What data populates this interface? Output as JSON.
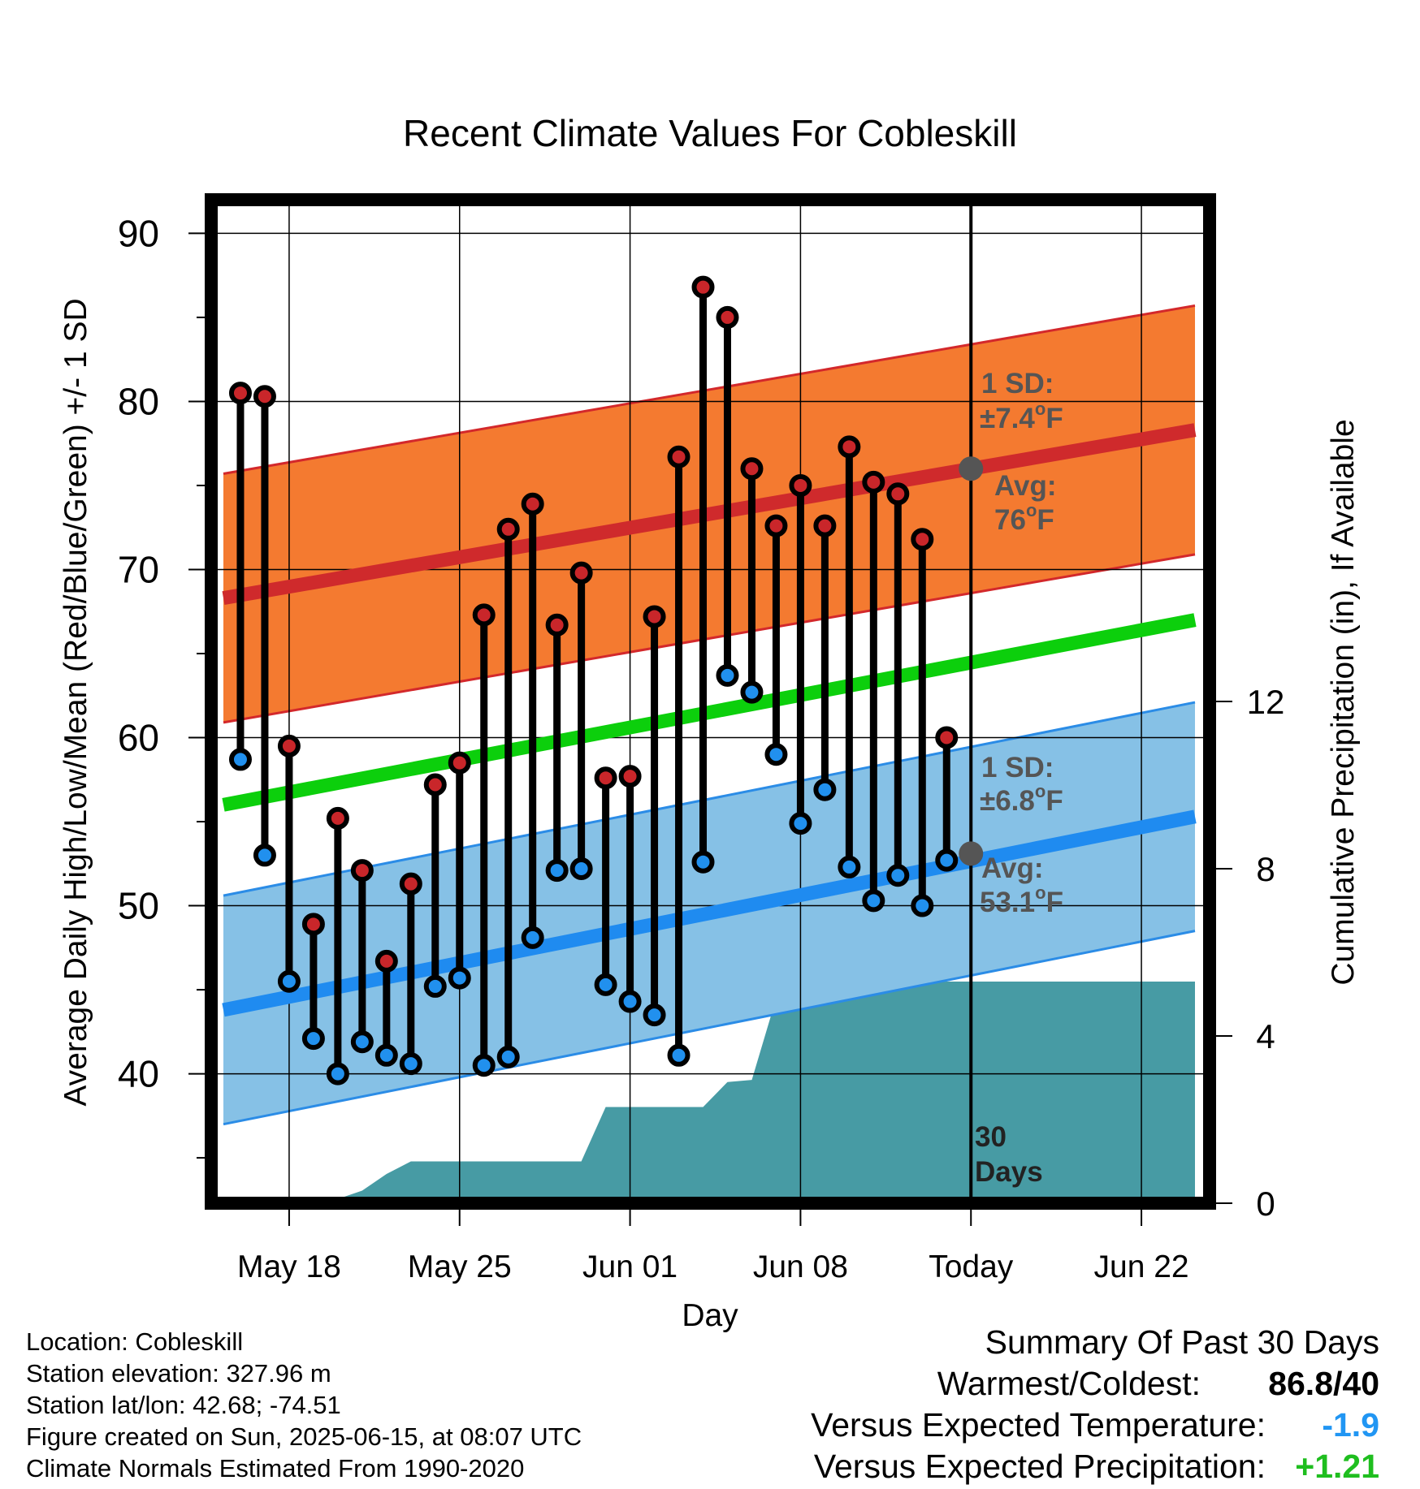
{
  "colors": {
    "high_band": "#f47a30",
    "high_edge": "#d3282b",
    "high_avg": "#cf2a2c",
    "low_band": "#86c1e6",
    "low_edge": "#2b8ce6",
    "low_avg": "#1f8bf0",
    "mean_line": "#0ccf0c",
    "precip": "#479ba4",
    "high_marker": "#c9262a",
    "low_marker": "#2190ee",
    "annotation": "#555555",
    "temp_departure": "#2196f3",
    "precip_departure": "#1fbe1f"
  },
  "chart_data": {
    "type": "line",
    "title": "Recent Climate Values For Cobleskill",
    "xlabel": "Day",
    "ylabel_left": "Average Daily High/Low/Mean (Red/Blue/Green) +/- 1 SD",
    "ylabel_right": "Cumulative Precipitation (in), If Available",
    "x_ticks": [
      {
        "day": 0,
        "label": "May 18"
      },
      {
        "day": 7,
        "label": "May 25"
      },
      {
        "day": 14,
        "label": "Jun 01"
      },
      {
        "day": 21,
        "label": "Jun 08"
      },
      {
        "day": 28,
        "label": "Today"
      },
      {
        "day": 35,
        "label": "Jun 22"
      }
    ],
    "xlim": [
      -3.2,
      37.8
    ],
    "ylim_left": [
      32.3,
      92
    ],
    "ylim_right": [
      0,
      24
    ],
    "y_ticks_left": [
      40,
      50,
      60,
      70,
      80,
      90
    ],
    "y_ticks_right": [
      0,
      4,
      8,
      12
    ],
    "grid": true,
    "days": [
      -2,
      -1,
      0,
      1,
      2,
      3,
      4,
      5,
      6,
      7,
      8,
      9,
      10,
      11,
      12,
      13,
      14,
      15,
      16,
      17,
      18,
      19,
      20,
      21,
      22,
      23,
      24,
      25,
      26,
      27
    ],
    "highs": [
      80.5,
      80.3,
      59.5,
      48.9,
      55.2,
      52.1,
      46.7,
      51.3,
      57.2,
      58.5,
      67.3,
      72.4,
      73.9,
      66.7,
      69.8,
      57.6,
      57.7,
      67.2,
      76.7,
      86.8,
      85.0,
      76.0,
      72.6,
      75.0,
      72.6,
      77.3,
      75.2,
      74.5,
      71.8,
      60.0
    ],
    "lows": [
      58.7,
      53.0,
      45.5,
      42.1,
      40.0,
      41.9,
      41.1,
      40.6,
      45.2,
      45.7,
      40.5,
      41.0,
      48.1,
      52.1,
      52.2,
      45.3,
      44.3,
      43.5,
      41.1,
      52.6,
      63.7,
      62.7,
      59.0,
      54.9,
      56.9,
      52.3,
      50.3,
      51.8,
      50.0,
      52.7
    ],
    "normal_high": {
      "x": [
        -2.7,
        37.2
      ],
      "avg": [
        68.3,
        78.3
      ],
      "sd": 7.4
    },
    "normal_low": {
      "x": [
        -2.7,
        37.2
      ],
      "avg": [
        43.8,
        55.3
      ],
      "sd": 6.8
    },
    "normal_mean": {
      "x": [
        -2.7,
        37.2
      ],
      "values": [
        56.0,
        67.0
      ]
    },
    "precip_cumulative": {
      "x": [
        -2.7,
        -1.1,
        0,
        1,
        2,
        3,
        4,
        5,
        6,
        7,
        8,
        9,
        10,
        11,
        12,
        13,
        14,
        15,
        16,
        17,
        18,
        19,
        20,
        21,
        22,
        23,
        24,
        25,
        26,
        27,
        28,
        37.2
      ],
      "y": [
        0,
        0,
        0.1,
        0.1,
        0.1,
        0.3,
        0.7,
        1.0,
        1.0,
        1.0,
        1.0,
        1.0,
        1.0,
        1.0,
        1.0,
        2.3,
        2.3,
        2.3,
        2.3,
        2.3,
        2.9,
        2.95,
        4.9,
        4.9,
        5.1,
        5.27,
        5.27,
        5.27,
        5.27,
        5.3,
        5.3,
        5.3
      ]
    },
    "today_day": 28,
    "today_high_avg": 76,
    "today_low_avg": 53.1
  },
  "annotations": {
    "high_sd_label": "1 SD:",
    "high_sd_value": "±7.4",
    "high_avg_label": "Avg:",
    "high_avg_value": "76",
    "low_sd_label": "1 SD:",
    "low_sd_value": "±6.8",
    "low_avg_label": "Avg:",
    "low_avg_value": "53.1",
    "deg_unit": "o",
    "f_unit": "F",
    "days_label_1": "30",
    "days_label_2": "Days"
  },
  "footer": {
    "location": "Location: Cobleskill",
    "elevation": "Station elevation: 327.96 m",
    "latlon": "Station lat/lon: 42.68; -74.51",
    "created": "Figure created on Sun, 2025-06-15, at 08:07 UTC",
    "normals": "Climate Normals Estimated From 1990-2020"
  },
  "summary": {
    "title": "Summary Of Past 30 Days",
    "warm_cold_label": "Warmest/Coldest:",
    "warm_cold_value": "86.8/40",
    "temp_label": "Versus Expected Temperature:",
    "temp_value": "-1.9",
    "precip_label": "Versus Expected Precipitation:",
    "precip_value": "+1.21"
  }
}
